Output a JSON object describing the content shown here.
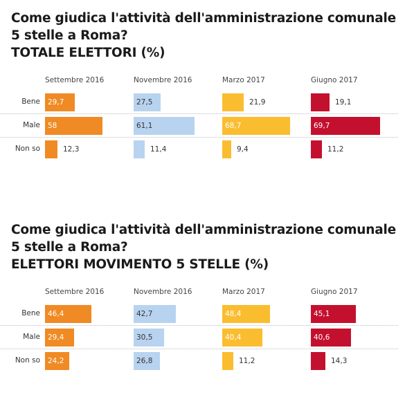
{
  "chart_data": [
    {
      "type": "bar",
      "title_lines": [
        "Come giudica l'attività dell'amministrazione comunale",
        "5 stelle a Roma?",
        "TOTALE ELETTORI (%)"
      ],
      "categories": [
        "Bene",
        "Male",
        "Non so"
      ],
      "series": [
        {
          "name": "Settembre 2016",
          "color": "#f08a24",
          "values": [
            29.7,
            58,
            12.3
          ]
        },
        {
          "name": "Novembre 2016",
          "color": "#b8d3ef",
          "values": [
            27.5,
            61.1,
            11.4
          ]
        },
        {
          "name": "Marzo 2017",
          "color": "#fbbd30",
          "values": [
            21.9,
            68.7,
            9.4
          ]
        },
        {
          "name": "Giugno 2017",
          "color": "#c4102f",
          "values": [
            19.1,
            69.7,
            11.2
          ]
        }
      ]
    },
    {
      "type": "bar",
      "title_lines": [
        "Come giudica l'attività dell'amministrazione comunale",
        "5 stelle a Roma?",
        "ELETTORI MOVIMENTO 5 STELLE (%)"
      ],
      "categories": [
        "Bene",
        "Male",
        "Non so"
      ],
      "series": [
        {
          "name": "Settembre 2016",
          "color": "#f08a24",
          "values": [
            46.4,
            29.4,
            24.2
          ]
        },
        {
          "name": "Novembre 2016",
          "color": "#b8d3ef",
          "values": [
            42.7,
            30.5,
            26.8
          ]
        },
        {
          "name": "Marzo 2017",
          "color": "#fbbd30",
          "values": [
            48.4,
            40.4,
            11.2
          ]
        },
        {
          "name": "Giugno 2017",
          "color": "#c4102f",
          "values": [
            45.1,
            40.6,
            14.3
          ]
        }
      ]
    }
  ]
}
